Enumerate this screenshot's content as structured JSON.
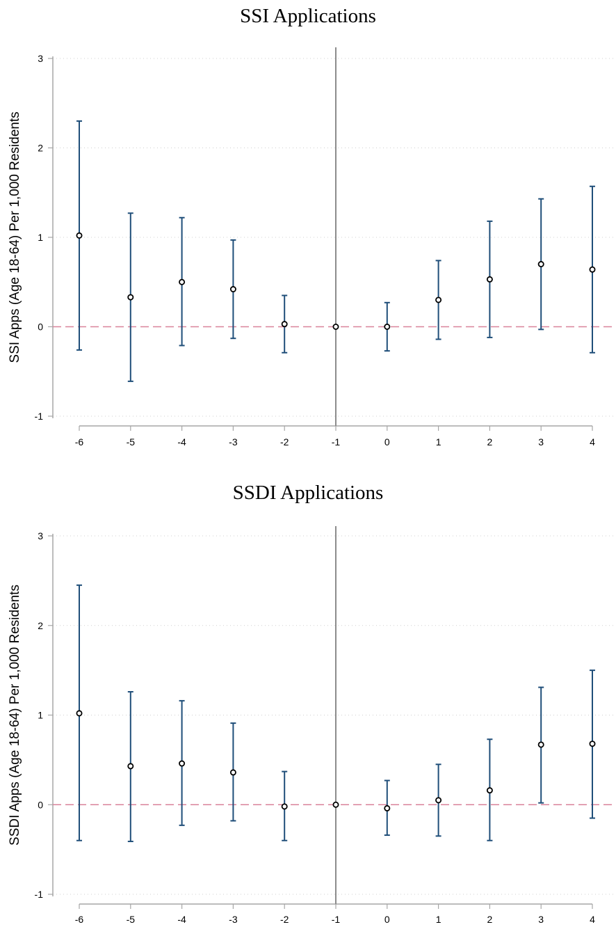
{
  "chart_data": [
    {
      "type": "scatter",
      "title": "SSI  Applications",
      "ylabel": "SSI Apps (Age 18-64) Per 1,000 Residents",
      "xlabel": "",
      "x": [
        -6,
        -5,
        -4,
        -3,
        -2,
        -1,
        0,
        1,
        2,
        3,
        4
      ],
      "xticks": [
        "-6",
        "-5",
        "-4",
        "-3",
        "-2",
        "-1",
        "0",
        "1",
        "2",
        "3",
        "4"
      ],
      "yticks": [
        "3",
        "2",
        "1",
        "0",
        "-1"
      ],
      "ylim": [
        -1,
        3
      ],
      "series": [
        {
          "estimate": [
            1.02,
            0.33,
            0.5,
            0.42,
            0.03,
            0.0,
            0.0,
            0.3,
            0.53,
            0.7,
            0.64
          ],
          "ci_lower": [
            -0.26,
            -0.61,
            -0.21,
            -0.13,
            -0.29,
            0.0,
            -0.27,
            -0.14,
            -0.12,
            -0.03,
            -0.29
          ],
          "ci_upper": [
            2.3,
            1.27,
            1.22,
            0.97,
            0.35,
            0.0,
            0.27,
            0.74,
            1.18,
            1.43,
            1.57
          ]
        }
      ],
      "reference_x": -1,
      "reference_y": 0,
      "grid": true
    },
    {
      "type": "scatter",
      "title": "SSDI  Applications",
      "ylabel": "SSDI Apps (Age 18-64) Per 1,000 Residents",
      "xlabel": "",
      "x": [
        -6,
        -5,
        -4,
        -3,
        -2,
        -1,
        0,
        1,
        2,
        3,
        4
      ],
      "xticks": [
        "-6",
        "-5",
        "-4",
        "-3",
        "-2",
        "-1",
        "0",
        "1",
        "2",
        "3",
        "4"
      ],
      "yticks": [
        "3",
        "2",
        "1",
        "0",
        "-1"
      ],
      "ylim": [
        -1,
        3
      ],
      "series": [
        {
          "estimate": [
            1.02,
            0.43,
            0.46,
            0.36,
            -0.02,
            0.0,
            -0.04,
            0.05,
            0.16,
            0.67,
            0.68
          ],
          "ci_lower": [
            -0.4,
            -0.41,
            -0.23,
            -0.18,
            -0.4,
            0.0,
            -0.34,
            -0.35,
            -0.4,
            0.02,
            -0.15
          ],
          "ci_upper": [
            2.45,
            1.26,
            1.16,
            0.91,
            0.37,
            0.0,
            0.27,
            0.45,
            0.73,
            1.31,
            1.5
          ]
        }
      ],
      "reference_x": -1,
      "reference_y": 0,
      "grid": true
    }
  ]
}
